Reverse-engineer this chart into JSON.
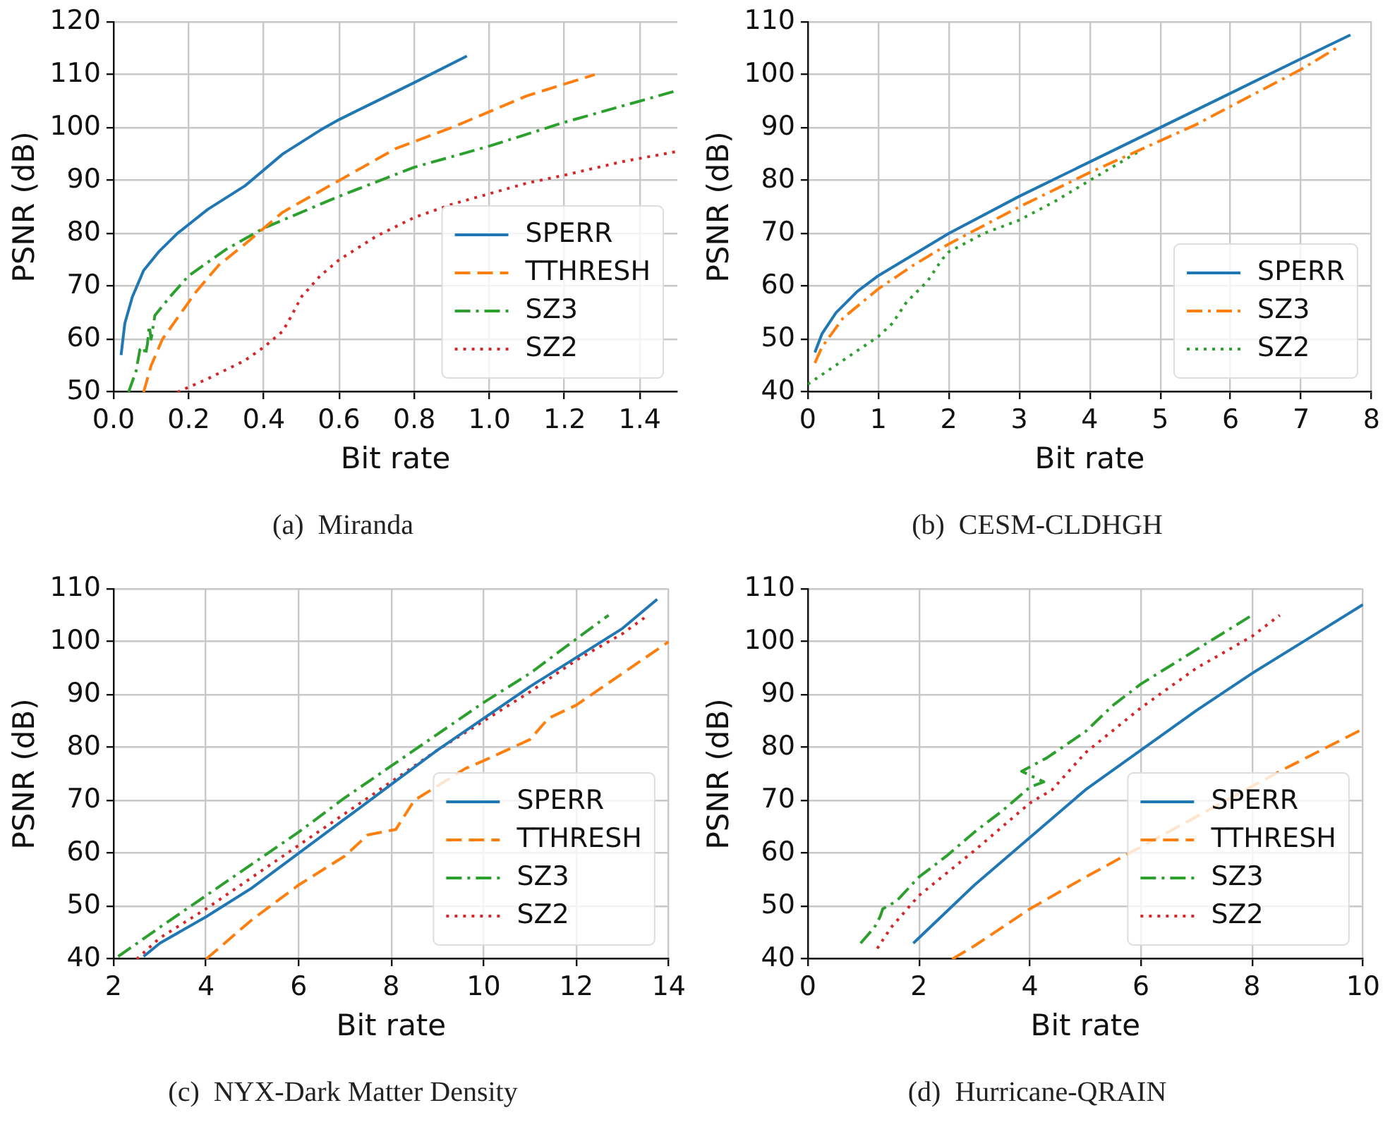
{
  "chart_data": [
    {
      "type": "line",
      "title": "(a)  Miranda",
      "xlabel": "Bit rate",
      "ylabel": "PSNR (dB)",
      "xlim": [
        0,
        1.5
      ],
      "ylim": [
        50,
        120
      ],
      "xticks": [
        {
          "value": 0,
          "label": "0.0"
        },
        {
          "value": 0.2,
          "label": "0.2"
        },
        {
          "value": 0.4,
          "label": "0.4"
        },
        {
          "value": 0.6,
          "label": "0.6"
        },
        {
          "value": 0.8,
          "label": "0.8"
        },
        {
          "value": 1,
          "label": "1.0"
        },
        {
          "value": 1.2,
          "label": "1.2"
        },
        {
          "value": 1.4,
          "label": "1.4"
        }
      ],
      "yticks": [
        50,
        60,
        70,
        80,
        90,
        100,
        110,
        120
      ],
      "grid": true,
      "legend": "bottom right",
      "marker": "none",
      "series": [
        {
          "name": "SPERR",
          "color": "#1f77b4",
          "line_style": "solid",
          "x": [
            0.02,
            0.03,
            0.05,
            0.08,
            0.12,
            0.17,
            0.25,
            0.35,
            0.45,
            0.55,
            0.6,
            0.7,
            0.8,
            0.94
          ],
          "values": [
            57,
            63,
            68,
            73,
            76.5,
            80,
            84.5,
            89,
            95,
            99.5,
            101.5,
            105,
            108.5,
            113.5
          ]
        },
        {
          "name": "TTHRESH",
          "color": "#ff7f0e",
          "line_style": "dashed",
          "x": [
            0.08,
            0.1,
            0.13,
            0.17,
            0.22,
            0.28,
            0.35,
            0.45,
            0.6,
            0.75,
            0.9,
            1.0,
            1.1,
            1.28
          ],
          "values": [
            50,
            55,
            60,
            64,
            69,
            74,
            78,
            84,
            90,
            96,
            100,
            103,
            106,
            110
          ]
        },
        {
          "name": "SZ3",
          "color": "#2ca02c",
          "line_style": "dashdot",
          "x": [
            0.04,
            0.06,
            0.07,
            0.08,
            0.085,
            0.09,
            0.095,
            0.1,
            0.11,
            0.15,
            0.2,
            0.3,
            0.4,
            0.6,
            0.8,
            1.0,
            1.2,
            1.5
          ],
          "values": [
            50,
            54,
            58,
            58.5,
            57,
            59,
            62.5,
            60,
            64.5,
            68,
            72,
            77,
            81,
            87,
            92.5,
            96.5,
            101,
            107
          ]
        },
        {
          "name": "SZ2",
          "color": "#d62728",
          "line_style": "dotted",
          "x": [
            0.17,
            0.25,
            0.35,
            0.4,
            0.45,
            0.47,
            0.5,
            0.55,
            0.6,
            0.7,
            0.8,
            0.9,
            1.0,
            1.1,
            1.2,
            1.35,
            1.5
          ],
          "values": [
            50,
            52.5,
            56,
            58.5,
            61.5,
            64,
            68,
            72,
            75,
            79.5,
            83,
            85.5,
            87.5,
            89.5,
            91,
            93.5,
            95.5
          ]
        }
      ]
    },
    {
      "type": "line",
      "title": "(b)  CESM-CLDHGH",
      "xlabel": "Bit rate",
      "ylabel": "PSNR (dB)",
      "xlim": [
        0,
        8
      ],
      "ylim": [
        40,
        110
      ],
      "xticks": [
        0,
        1,
        2,
        3,
        4,
        5,
        6,
        7,
        8
      ],
      "yticks": [
        40,
        50,
        60,
        70,
        80,
        90,
        100,
        110
      ],
      "grid": true,
      "legend": "bottom right",
      "marker": "none",
      "series": [
        {
          "name": "SPERR",
          "color": "#1f77b4",
          "line_style": "solid",
          "x": [
            0.1,
            0.2,
            0.4,
            0.7,
            1,
            1.5,
            2,
            3,
            4,
            5,
            6,
            7,
            7.7
          ],
          "values": [
            47.5,
            51,
            55,
            59,
            62,
            66,
            70,
            77,
            83.5,
            90,
            96.5,
            103,
            107.5
          ]
        },
        {
          "name": "SZ3",
          "color": "#ff7f0e",
          "line_style": "dashdot",
          "x": [
            0.1,
            0.2,
            0.5,
            1,
            1.5,
            2,
            2.5,
            3,
            4,
            5,
            5.5,
            6,
            7,
            7.5
          ],
          "values": [
            45.5,
            48.5,
            54,
            59.5,
            64,
            68,
            71.5,
            75,
            81.5,
            87.5,
            90.5,
            94,
            101,
            105
          ]
        },
        {
          "name": "SZ2",
          "color": "#2ca02c",
          "line_style": "dotted",
          "x": [
            0,
            0.5,
            1,
            1.2,
            1.4,
            1.7,
            1.9,
            2,
            2.5,
            3,
            3.5,
            4,
            4.7
          ],
          "values": [
            41.5,
            46,
            50.5,
            53,
            57,
            61,
            65,
            66.5,
            70,
            72.5,
            76,
            80,
            85.5
          ]
        }
      ]
    },
    {
      "type": "line",
      "title": "(c)  NYX-Dark Matter Density",
      "xlabel": "Bit rate",
      "ylabel": "PSNR (dB)",
      "xlim": [
        2,
        14
      ],
      "ylim": [
        40,
        110
      ],
      "xticks": [
        2,
        4,
        6,
        8,
        10,
        12,
        14
      ],
      "yticks": [
        40,
        50,
        60,
        70,
        80,
        90,
        100,
        110
      ],
      "grid": true,
      "legend": "bottom right",
      "marker": "none",
      "series": [
        {
          "name": "SPERR",
          "color": "#1f77b4",
          "line_style": "solid",
          "x": [
            2.65,
            3,
            4,
            5,
            6,
            7,
            8,
            9,
            10,
            11,
            12,
            13,
            13.75
          ],
          "values": [
            40.5,
            43,
            48,
            53.5,
            60,
            66.5,
            73,
            79.5,
            85.5,
            91.5,
            97,
            102.5,
            108
          ]
        },
        {
          "name": "TTHRESH",
          "color": "#ff7f0e",
          "line_style": "dashed",
          "x": [
            4,
            5,
            6,
            7,
            7.5,
            8.1,
            8.5,
            9.6,
            10,
            11,
            11.4,
            12,
            13,
            14
          ],
          "values": [
            40,
            47.5,
            54,
            59.5,
            63.5,
            64.5,
            70,
            76,
            77.5,
            81.5,
            85.5,
            88,
            94,
            100
          ]
        },
        {
          "name": "SZ3",
          "color": "#2ca02c",
          "line_style": "dashdot",
          "x": [
            2.1,
            3,
            4,
            5,
            6,
            7,
            8,
            9,
            10,
            11,
            12,
            12.7
          ],
          "values": [
            40.5,
            46,
            52,
            58,
            64,
            70.5,
            76.5,
            82.5,
            88.5,
            94,
            100.5,
            105
          ]
        },
        {
          "name": "SZ2",
          "color": "#d62728",
          "line_style": "dotted",
          "x": [
            2.5,
            3,
            4,
            5,
            6,
            7,
            8,
            9,
            10,
            11,
            12,
            13,
            13.55
          ],
          "values": [
            40,
            44,
            49.5,
            55.5,
            61.5,
            67.5,
            73.5,
            79.5,
            85,
            90.5,
            96.5,
            101.5,
            105
          ]
        }
      ]
    },
    {
      "type": "line",
      "title": "(d)  Hurricane-QRAIN",
      "xlabel": "Bit rate",
      "ylabel": "PSNR (dB)",
      "xlim": [
        0,
        10
      ],
      "ylim": [
        40,
        110
      ],
      "xticks": [
        0,
        2,
        4,
        6,
        8,
        10
      ],
      "yticks": [
        40,
        50,
        60,
        70,
        80,
        90,
        100,
        110
      ],
      "grid": true,
      "legend": "bottom right",
      "marker": "none",
      "series": [
        {
          "name": "SPERR",
          "color": "#1f77b4",
          "line_style": "solid",
          "x": [
            1.9,
            2.5,
            3,
            4,
            5,
            6,
            7,
            8,
            9,
            10
          ],
          "values": [
            43,
            49,
            54,
            63,
            72,
            79.5,
            87,
            94,
            100.5,
            107
          ]
        },
        {
          "name": "TTHRESH",
          "color": "#ff7f0e",
          "line_style": "dashed",
          "x": [
            2.6,
            3,
            4,
            5,
            8.5,
            10
          ],
          "values": [
            40,
            42.5,
            49.5,
            55.5,
            75.5,
            83.5
          ]
        },
        {
          "name": "SZ3",
          "color": "#2ca02c",
          "line_style": "dashdot",
          "x": [
            0.95,
            1.2,
            1.3,
            1.35,
            1.6,
            2,
            2.5,
            3,
            3.5,
            4,
            4.25,
            3.85,
            4.3,
            5,
            5.5,
            6,
            7,
            8
          ],
          "values": [
            43,
            46,
            48,
            49.5,
            51,
            55.5,
            59.5,
            64,
            68,
            72.5,
            73.5,
            75.5,
            78,
            83,
            88,
            92,
            98.5,
            105
          ]
        },
        {
          "name": "SZ2",
          "color": "#d62728",
          "line_style": "dotted",
          "x": [
            1.25,
            1.5,
            2,
            3,
            4,
            4.4,
            5,
            6,
            7,
            8,
            8.5
          ],
          "values": [
            42,
            46,
            52,
            60.5,
            69.5,
            72,
            79,
            87.5,
            95,
            101,
            105
          ]
        }
      ]
    }
  ]
}
